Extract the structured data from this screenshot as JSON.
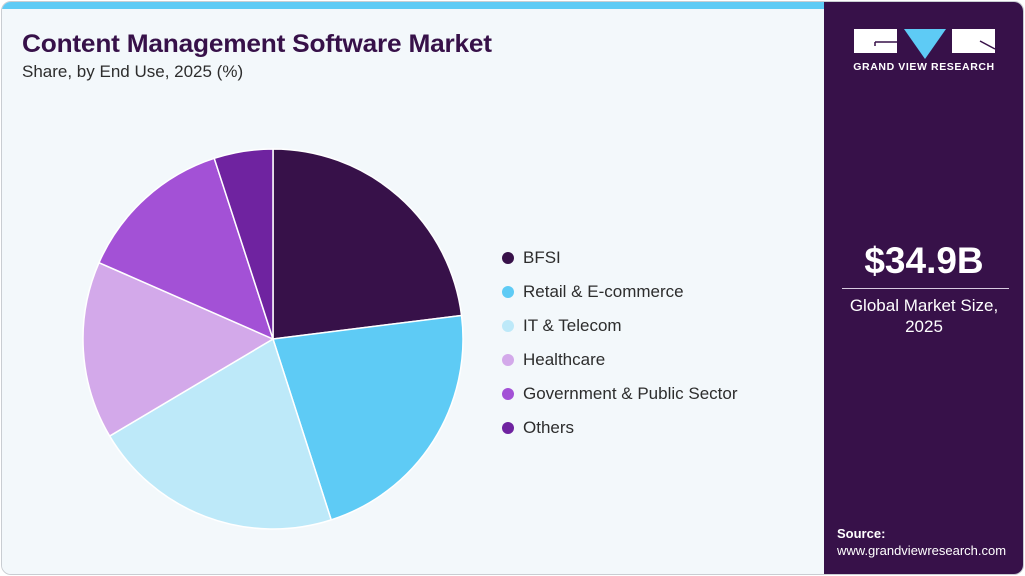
{
  "header": {
    "title": "Content Management Software Market",
    "subtitle": "Share, by End Use, 2025 (%)"
  },
  "legend": {
    "items": [
      {
        "label": "BFSI",
        "color": "#371149"
      },
      {
        "label": "Retail & E-commerce",
        "color": "#5ecbf5"
      },
      {
        "label": "IT & Telecom",
        "color": "#bde9f9"
      },
      {
        "label": "Healthcare",
        "color": "#d3a9ea"
      },
      {
        "label": "Government & Public Sector",
        "color": "#a351d6"
      },
      {
        "label": "Others",
        "color": "#6f23a0"
      }
    ]
  },
  "sidebar": {
    "brand": "GRAND VIEW RESEARCH",
    "market_value": "$34.9B",
    "market_label_line1": "Global Market Size,",
    "market_label_line2": "2025",
    "source_label": "Source:",
    "source_url": "www.grandviewresearch.com"
  },
  "colors": {
    "accent_bar": "#5ecbf5",
    "sidebar_bg": "#371149",
    "title": "#371149",
    "background": "#f3f8fb"
  },
  "chart_data": {
    "type": "pie",
    "title": "Content Management Software Market",
    "subtitle": "Share, by End Use, 2025 (%)",
    "categories": [
      "BFSI",
      "Retail & E-commerce",
      "IT & Telecom",
      "Healthcare",
      "Government & Public Sector",
      "Others"
    ],
    "values": [
      23.0,
      22.0,
      21.4,
      15.1,
      13.4,
      5.0
    ],
    "colors": [
      "#371149",
      "#5ecbf5",
      "#bde9f9",
      "#d3a9ea",
      "#a351d6",
      "#6f23a0"
    ],
    "start_angle_deg": 0,
    "direction": "clockwise",
    "legend_position": "right",
    "total_market_size": "$34.9B",
    "year": 2025
  }
}
